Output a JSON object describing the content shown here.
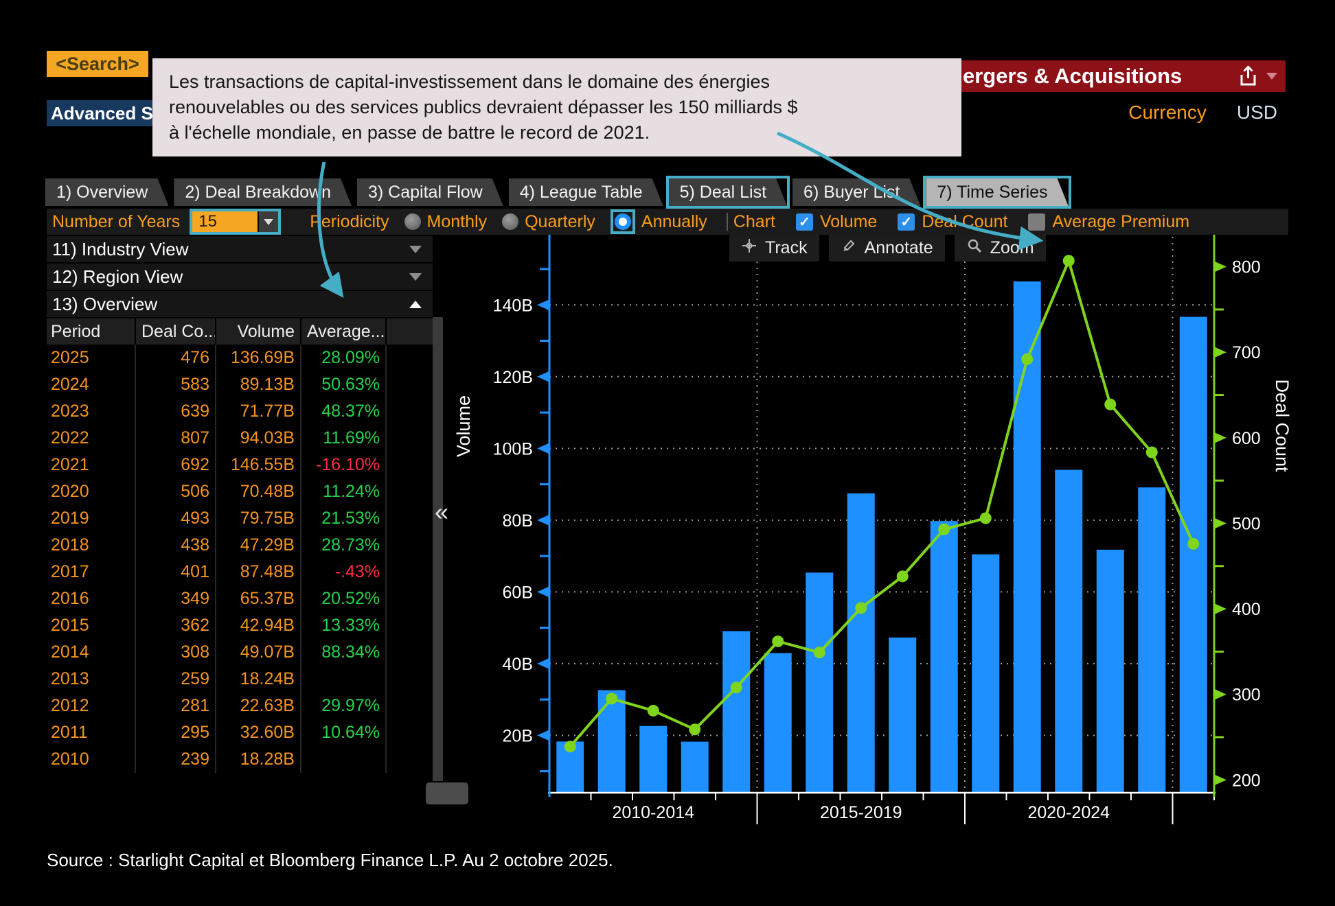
{
  "colors": {
    "accent_orange": "#f5a623",
    "amber_text": "#fa9d1c",
    "data_orange": "#f5941e",
    "positive_green": "#27d24e",
    "negative_red": "#ff2e44",
    "bar_blue": "#1e90ff",
    "line_green": "#7fd41d",
    "highlight_teal": "#45aec6",
    "title_red": "#8e1118",
    "tooltip_bg": "#e7dee1",
    "active_tab_bg": "#b5b5b5",
    "checkbox_blue": "#2e8fea"
  },
  "header": {
    "search_label": "<Search>",
    "advanced_label": "Advanced Se",
    "title": "ergers & Acquisitions",
    "currency_label": "Currency",
    "currency_value": "USD"
  },
  "tooltip": {
    "lines": [
      "Les transactions de capital-investissement dans le domaine des énergies",
      "renouvelables ou des services publics devraient dépasser les 150 milliards $",
      "à l'échelle mondiale, en passe de battre le record de 2021."
    ]
  },
  "tabs": [
    {
      "label": "1) Overview",
      "active": false,
      "highlighted": false
    },
    {
      "label": "2) Deal Breakdown",
      "active": false,
      "highlighted": false
    },
    {
      "label": "3) Capital Flow",
      "active": false,
      "highlighted": false
    },
    {
      "label": "4) League Table",
      "active": false,
      "highlighted": false
    },
    {
      "label": "5) Deal List",
      "active": false,
      "highlighted": true
    },
    {
      "label": "6) Buyer List",
      "active": false,
      "highlighted": false
    },
    {
      "label": "7) Time Series",
      "active": true,
      "highlighted": true
    }
  ],
  "filters": {
    "years_label": "Number of Years",
    "years_value": "15",
    "periodicity_label": "Periodicity",
    "periodicity_options": [
      {
        "label": "Monthly",
        "selected": false
      },
      {
        "label": "Quarterly",
        "selected": false
      },
      {
        "label": "Annually",
        "selected": true
      }
    ],
    "chart_label": "Chart",
    "series_toggles": [
      {
        "label": "Volume",
        "checked": true
      },
      {
        "label": "Deal Count",
        "checked": true
      },
      {
        "label": "Average Premium",
        "checked": false
      }
    ]
  },
  "sidebar": {
    "sections": [
      {
        "label": "11) Industry View",
        "expanded": false
      },
      {
        "label": "12) Region View",
        "expanded": false
      },
      {
        "label": "13) Overview",
        "expanded": true
      }
    ],
    "table": {
      "columns": [
        "Period",
        "Deal Co...",
        "Volume",
        "Average..."
      ],
      "rows": [
        [
          "2025",
          "476",
          "136.69B",
          "28.09%"
        ],
        [
          "2024",
          "583",
          "89.13B",
          "50.63%"
        ],
        [
          "2023",
          "639",
          "71.77B",
          "48.37%"
        ],
        [
          "2022",
          "807",
          "94.03B",
          "11.69%"
        ],
        [
          "2021",
          "692",
          "146.55B",
          "-16.10%"
        ],
        [
          "2020",
          "506",
          "70.48B",
          "11.24%"
        ],
        [
          "2019",
          "493",
          "79.75B",
          "21.53%"
        ],
        [
          "2018",
          "438",
          "47.29B",
          "28.73%"
        ],
        [
          "2017",
          "401",
          "87.48B",
          "-.43%"
        ],
        [
          "2016",
          "349",
          "65.37B",
          "20.52%"
        ],
        [
          "2015",
          "362",
          "42.94B",
          "13.33%"
        ],
        [
          "2014",
          "308",
          "49.07B",
          "88.34%"
        ],
        [
          "2013",
          "259",
          "18.24B",
          ""
        ],
        [
          "2012",
          "281",
          "22.63B",
          "29.97%"
        ],
        [
          "2011",
          "295",
          "32.60B",
          "10.64%"
        ],
        [
          "2010",
          "239",
          "18.28B",
          ""
        ]
      ]
    }
  },
  "panel_collapse_glyph": "«",
  "chart_toolbar": [
    {
      "icon": "track-icon",
      "label": "Track"
    },
    {
      "icon": "annotate-icon",
      "label": "Annotate"
    },
    {
      "icon": "zoom-icon",
      "label": "Zoom"
    }
  ],
  "chart_data": {
    "type": "bar+line",
    "categories": [
      2010,
      2011,
      2012,
      2013,
      2014,
      2015,
      2016,
      2017,
      2018,
      2019,
      2020,
      2021,
      2022,
      2023,
      2024,
      2025
    ],
    "series": [
      {
        "name": "Volume",
        "type": "bar",
        "axis": "left",
        "unit": "USD billions",
        "color": "#1e90ff",
        "values": [
          18.28,
          32.6,
          22.63,
          18.24,
          49.07,
          42.94,
          65.37,
          87.48,
          47.29,
          79.75,
          70.48,
          146.55,
          94.03,
          71.77,
          89.13,
          136.69
        ]
      },
      {
        "name": "Deal Count",
        "type": "line",
        "axis": "right",
        "color": "#7fd41d",
        "values": [
          239,
          295,
          281,
          259,
          308,
          362,
          349,
          401,
          438,
          493,
          506,
          692,
          807,
          639,
          583,
          476
        ]
      }
    ],
    "left_axis": {
      "label": "Volume",
      "tick_labels": [
        "20B",
        "40B",
        "60B",
        "80B",
        "100B",
        "120B",
        "140B"
      ],
      "tick_values": [
        20,
        40,
        60,
        80,
        100,
        120,
        140
      ],
      "range": [
        4,
        159
      ]
    },
    "right_axis": {
      "label": "Deal Count",
      "tick_values": [
        200,
        300,
        400,
        500,
        600,
        700,
        800
      ],
      "range": [
        185,
        835
      ]
    },
    "x_groups": [
      {
        "label": "2010-2014",
        "start": 0,
        "end": 4
      },
      {
        "label": "2015-2019",
        "start": 5,
        "end": 9
      },
      {
        "label": "2020-2024",
        "start": 10,
        "end": 14
      }
    ],
    "grid": "dashed horizontal at left-axis ticks; dashed vertical at group boundaries",
    "legend": "none"
  },
  "source": "Source : Starlight Capital et Bloomberg Finance L.P. Au 2 octobre 2025."
}
